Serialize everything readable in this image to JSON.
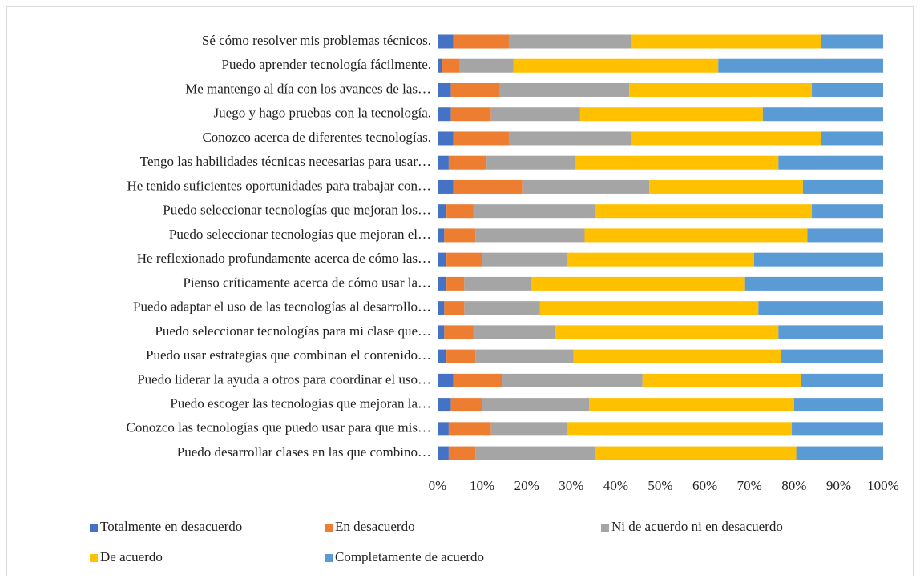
{
  "chart_data": {
    "type": "stacked_barh",
    "categories": [
      "Sé cómo resolver mis problemas técnicos.",
      "Puedo aprender tecnología fácilmente.",
      "Me mantengo al día con los avances de las…",
      "Juego y hago pruebas con la tecnología.",
      "Conozco acerca de diferentes tecnologías.",
      "Tengo las habilidades técnicas necesarias para usar…",
      "He tenido suficientes oportunidades para trabajar con…",
      "Puedo seleccionar tecnologías que mejoran los…",
      "Puedo seleccionar tecnologías que mejoran el…",
      "He reflexionado profundamente acerca de cómo las…",
      "Pienso críticamente acerca de cómo usar la…",
      "Puedo adaptar el uso de las tecnologías al desarrollo…",
      "Puedo seleccionar tecnologías para mi clase que…",
      "Puedo usar estrategias que combinan el contenido…",
      "Puedo liderar la ayuda a otros para coordinar el uso…",
      "Puedo escoger las tecnologías que mejoran la…",
      "Conozco las tecnologías que puedo usar para que mis…",
      "Puedo desarrollar clases en las que combino…"
    ],
    "series": [
      {
        "name": "Totalmente en desacuerdo",
        "color": "#4472c4",
        "values": [
          3.5,
          1,
          3,
          3,
          3.5,
          2.5,
          3.5,
          2,
          1.5,
          2,
          2,
          1.5,
          1.5,
          2,
          3.5,
          3,
          2.5,
          2.5
        ]
      },
      {
        "name": "En desacuerdo",
        "color": "#ed7d31",
        "values": [
          12.5,
          4,
          11,
          9,
          12.5,
          8.5,
          15.5,
          6,
          7,
          8,
          4,
          4.5,
          6.5,
          6.5,
          11,
          7,
          9.5,
          6
        ]
      },
      {
        "name": "Ni de acuerdo ni en desacuerdo",
        "color": "#a5a5a5",
        "values": [
          27.5,
          12,
          29,
          20,
          27.5,
          20,
          28.5,
          27.5,
          24.5,
          19,
          15,
          17,
          18.5,
          22,
          31.5,
          24,
          17,
          27
        ]
      },
      {
        "name": "De acuerdo",
        "color": "#ffc000",
        "values": [
          42.5,
          46,
          41,
          41,
          42.5,
          45.5,
          34.5,
          48.5,
          50,
          42,
          48,
          49,
          50,
          46.5,
          35.5,
          46,
          50.5,
          45
        ]
      },
      {
        "name": "Completamente de acuerdo",
        "color": "#5b9bd5",
        "values": [
          14,
          37,
          16,
          27,
          14,
          23.5,
          18,
          16,
          17,
          29,
          31,
          28,
          23.5,
          23,
          18.5,
          20,
          20.5,
          19.5
        ]
      }
    ],
    "xlim": [
      0,
      100
    ],
    "xticks": [
      {
        "value": 0,
        "label": "0%"
      },
      {
        "value": 10,
        "label": "10%"
      },
      {
        "value": 20,
        "label": "20%"
      },
      {
        "value": 30,
        "label": "30%"
      },
      {
        "value": 40,
        "label": "40%"
      },
      {
        "value": 50,
        "label": "50%"
      },
      {
        "value": 60,
        "label": "60%"
      },
      {
        "value": 70,
        "label": "70%"
      },
      {
        "value": 80,
        "label": "80%"
      },
      {
        "value": 90,
        "label": "90%"
      },
      {
        "value": 100,
        "label": "100%"
      }
    ],
    "legend": "bottom"
  }
}
